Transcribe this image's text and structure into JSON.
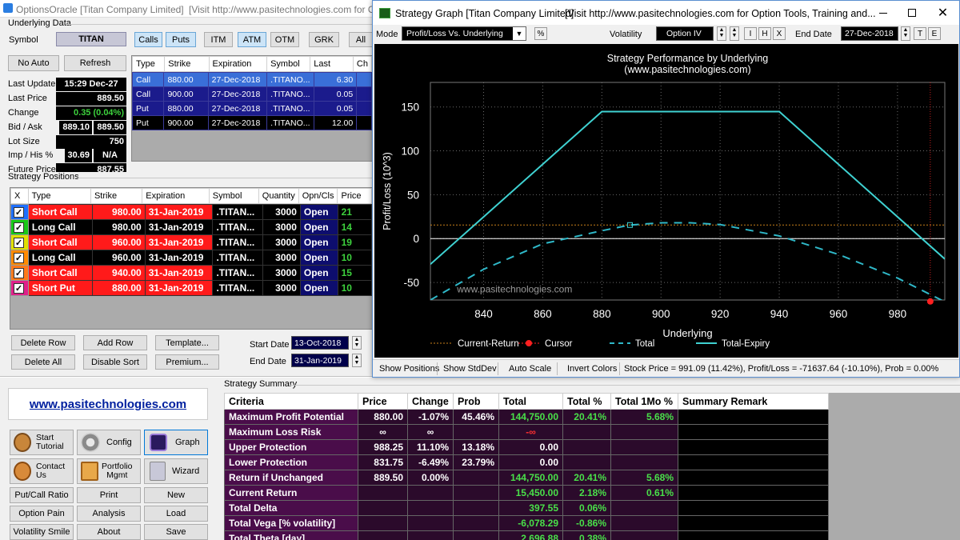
{
  "main_window": {
    "title": "OptionsOracle [Titan Company Limited]",
    "title_extra": "[Visit  http://www.pasitechnologies.com  for Op",
    "underlying_group": "Underlying Data",
    "symbol_label": "Symbol",
    "symbol_value": "TITAN",
    "filter_buttons": [
      "Calls",
      "Puts",
      "ITM",
      "ATM",
      "OTM",
      "GRK",
      "All"
    ],
    "no_auto": "No Auto",
    "refresh": "Refresh",
    "fields": [
      {
        "label": "Last Update",
        "value": "15:29 Dec-27"
      },
      {
        "label": "Last Price",
        "value": "889.50"
      },
      {
        "label": "Change",
        "value": "0.35 (0.04%)"
      },
      {
        "label": "Bid / Ask",
        "value": "889.10",
        "value2": "889.50"
      },
      {
        "label": "Lot Size",
        "value": "750"
      },
      {
        "label": "Imp / His %",
        "value": "30.69",
        "value2": "N/A"
      },
      {
        "label": "Future Price",
        "value": "887.55"
      }
    ],
    "options_table": {
      "headers": [
        "Type",
        "Strike",
        "Expiration",
        "Symbol",
        "Last",
        "Ch"
      ],
      "rows": [
        [
          "Call",
          "880.00",
          "27-Dec-2018",
          ".TITANO...",
          "6.30",
          ""
        ],
        [
          "Call",
          "900.00",
          "27-Dec-2018",
          ".TITANO...",
          "0.05",
          ""
        ],
        [
          "Put",
          "880.00",
          "27-Dec-2018",
          ".TITANO...",
          "0.05",
          ""
        ],
        [
          "Put",
          "900.00",
          "27-Dec-2018",
          ".TITANO...",
          "12.00",
          ""
        ]
      ]
    },
    "positions_group": "Strategy Positions",
    "positions_table": {
      "headers": [
        "X",
        "Type",
        "Strike",
        "Expiration",
        "Symbol",
        "Quantity",
        "Opn/Cls",
        "Price"
      ],
      "rows": [
        {
          "type": "Short Call",
          "strike": "980.00",
          "exp": "31-Jan-2019",
          "symbol": ".TITAN...",
          "qty": "3000",
          "oc": "Open",
          "price": "21",
          "cb": "#1e6fff",
          "short": true
        },
        {
          "type": "Long Call",
          "strike": "980.00",
          "exp": "31-Jan-2019",
          "symbol": ".TITAN...",
          "qty": "3000",
          "oc": "Open",
          "price": "14",
          "cb": "#18c818",
          "short": false
        },
        {
          "type": "Short Call",
          "strike": "960.00",
          "exp": "31-Jan-2019",
          "symbol": ".TITAN...",
          "qty": "3000",
          "oc": "Open",
          "price": "19",
          "cb": "#e0e000",
          "short": true
        },
        {
          "type": "Long Call",
          "strike": "960.00",
          "exp": "31-Jan-2019",
          "symbol": ".TITAN...",
          "qty": "3000",
          "oc": "Open",
          "price": "10",
          "cb": "#ff8a00",
          "short": false
        },
        {
          "type": "Short Call",
          "strike": "940.00",
          "exp": "31-Jan-2019",
          "symbol": ".TITAN...",
          "qty": "3000",
          "oc": "Open",
          "price": "15",
          "cb": "#ff7a1a",
          "short": true
        },
        {
          "type": "Short Put",
          "strike": "880.00",
          "exp": "31-Jan-2019",
          "symbol": ".TITAN...",
          "qty": "3000",
          "oc": "Open",
          "price": "10",
          "cb": "#e0208a",
          "short": true
        }
      ]
    },
    "row_buttons": [
      "Delete Row",
      "Add Row",
      "Template...",
      "Delete All",
      "Disable Sort",
      "Premium..."
    ],
    "start_date_label": "Start Date",
    "start_date": "13-Oct-2018",
    "end_date_label": "End Date",
    "end_date": "31-Jan-2019",
    "website": "www.pasitechnologies.com",
    "nav_buttons": [
      {
        "label": "Start\nTutorial",
        "icon": "tutorial-icon"
      },
      {
        "label": "Config",
        "icon": "gear-icon"
      },
      {
        "label": "Graph",
        "icon": "graph-icon"
      },
      {
        "label": "Contact\nUs",
        "icon": "contact-icon"
      },
      {
        "label": "Portfolio\nMgmt",
        "icon": "portfolio-icon"
      },
      {
        "label": "Wizard",
        "icon": "wizard-icon"
      }
    ],
    "small_buttons": [
      "Put/Call Ratio",
      "Print",
      "New",
      "Option Pain",
      "Analysis",
      "Load",
      "Volatility Smile",
      "About",
      "Save"
    ]
  },
  "summary": {
    "group_label": "Strategy Summary",
    "headers": [
      "Criteria",
      "Price",
      "Change",
      "Prob",
      "Total",
      "Total %",
      "Total 1Mo %",
      "Summary Remark"
    ],
    "rows": [
      [
        "Maximum Profit Potential",
        "880.00",
        "-1.07%",
        "45.46%",
        "144,750.00",
        "20.41%",
        "5.68%",
        ""
      ],
      [
        "Maximum Loss Risk",
        "∞",
        "∞",
        "",
        "-∞",
        "",
        "",
        ""
      ],
      [
        "Upper Protection",
        "988.25",
        "11.10%",
        "13.18%",
        "0.00",
        "",
        "",
        ""
      ],
      [
        "Lower Protection",
        "831.75",
        "-6.49%",
        "23.79%",
        "0.00",
        "",
        "",
        ""
      ],
      [
        "Return if Unchanged",
        "889.50",
        "0.00%",
        "",
        "144,750.00",
        "20.41%",
        "5.68%",
        ""
      ],
      [
        "Current Return",
        "",
        "",
        "",
        "15,450.00",
        "2.18%",
        "0.61%",
        ""
      ],
      [
        "Total Delta",
        "",
        "",
        "",
        "397.55",
        "0.06%",
        "",
        ""
      ],
      [
        "Total Vega [% volatility]",
        "",
        "",
        "",
        "-6,078.29",
        "-0.86%",
        "",
        ""
      ],
      [
        "Total Theta [day]",
        "",
        "",
        "",
        "2,696.88",
        "0.38%",
        "",
        ""
      ]
    ]
  },
  "graph_window": {
    "title": "Strategy Graph [Titan Company Limited]",
    "title_extra": "[Visit  http://www.pasitechnologies.com  for Option Tools, Training and...",
    "mode_label": "Mode",
    "mode_value": "Profit/Loss Vs. Underlying",
    "pct_button": "%",
    "volatility_label": "Volatility",
    "volatility_value": "Option IV",
    "i_button": "I",
    "h_button": "H",
    "x_button": "X",
    "end_date_label": "End Date",
    "end_date_value": "27-Dec-2018",
    "t_button": "T",
    "e_button": "E",
    "watermark": "www.pasitechnologies.com",
    "bottom_buttons": [
      "Show Positions",
      "Show StdDev",
      "Auto Scale",
      "Invert Colors"
    ],
    "status": "Stock Price = 991.09 (11.42%), Profit/Loss = -71637.64 (-10.10%), Prob = 0.00%",
    "colors": {
      "bg": "#000000",
      "expiry": "#3fd2d2",
      "total": "#2fb8c8",
      "current": "#c8801a",
      "cursor": "#ff2020"
    }
  },
  "chart_data": {
    "type": "line",
    "title": "Strategy Performance by Underlying",
    "subtitle": "(www.pasitechnologies.com)",
    "xlabel": "Underlying",
    "ylabel": "Profit/Loss (10^3)",
    "xlim": [
      822,
      996
    ],
    "ylim": [
      -70,
      178
    ],
    "xticks": [
      840,
      860,
      880,
      900,
      920,
      940,
      960,
      980
    ],
    "yticks": [
      -50,
      0,
      50,
      100,
      150
    ],
    "grid": true,
    "legend_position": "bottom",
    "current_return": 15.45,
    "cursor": {
      "x": 991.09,
      "y": -71.64
    },
    "marker": {
      "x": 889.5,
      "y": 15.45
    },
    "series": [
      {
        "name": "Total-Expiry",
        "x": [
          822,
          880,
          940,
          996
        ],
        "y": [
          -29.25,
          144.75,
          144.75,
          -23.25
        ]
      },
      {
        "name": "Total",
        "x": [
          822,
          840,
          860,
          880,
          889.5,
          900,
          910,
          920,
          940,
          960,
          980,
          996
        ],
        "y": [
          -70,
          -35,
          -6,
          9,
          15.45,
          18,
          18,
          16,
          3,
          -18,
          -45,
          -72
        ]
      }
    ],
    "legend": [
      "Current-Return",
      "Cursor",
      "Total",
      "Total-Expiry"
    ]
  }
}
